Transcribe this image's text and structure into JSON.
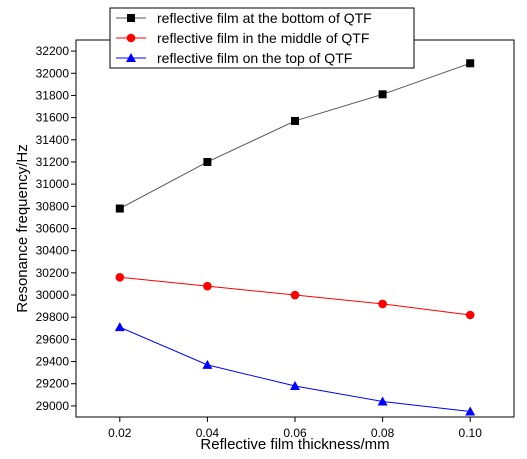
{
  "chart_data": {
    "type": "line",
    "title": "",
    "xlabel": "Reflective film thickness/mm",
    "ylabel": "Resonance frequency/Hz",
    "x": [
      0.02,
      0.04,
      0.06,
      0.08,
      0.1
    ],
    "x_tick_labels": [
      "0.02",
      "0.04",
      "0.06",
      "0.08",
      "0.10"
    ],
    "xlim": [
      0.01,
      0.11
    ],
    "ylim": [
      28900,
      32300
    ],
    "y_ticks": [
      29000,
      29200,
      29400,
      29600,
      29800,
      30000,
      30200,
      30400,
      30600,
      30800,
      31000,
      31200,
      31400,
      31600,
      31800,
      32000,
      32200
    ],
    "grid": false,
    "legend_position": "top",
    "series": [
      {
        "name": "reflective film at the bottom of QTF",
        "values": [
          30780,
          31200,
          31570,
          31810,
          32090
        ],
        "marker": "square",
        "marker_color": "#000000",
        "line_color": "#555555"
      },
      {
        "name": "reflective film in the middle of QTF",
        "values": [
          30160,
          30080,
          30000,
          29920,
          29820
        ],
        "marker": "circle",
        "marker_color": "#ff0000",
        "line_color": "#ff0000"
      },
      {
        "name": "reflective film on the top of QTF",
        "values": [
          29710,
          29370,
          29180,
          29040,
          28950
        ],
        "marker": "triangle",
        "marker_color": "#0000ff",
        "line_color": "#0000ff"
      }
    ]
  }
}
